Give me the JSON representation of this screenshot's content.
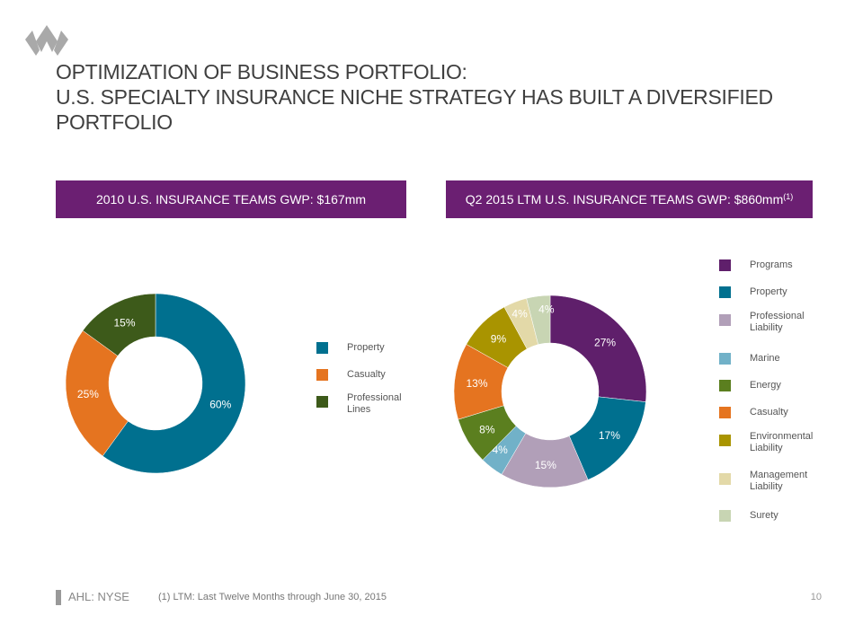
{
  "header": {
    "title_lines": [
      "OPTIMIZATION OF BUSINESS PORTFOLIO:",
      "U.S. SPECIALTY INSURANCE NICHE STRATEGY HAS BUILT A DIVERSIFIED",
      "PORTFOLIO"
    ]
  },
  "left_panel": {
    "title": "2010 U.S. INSURANCE TEAMS GWP:  $167mm"
  },
  "right_panel": {
    "title": "Q2 2015 LTM U.S. INSURANCE TEAMS GWP:  $860mm",
    "title_sup": "(1)"
  },
  "chart_data": [
    {
      "type": "pie",
      "donut": true,
      "title": "2010 U.S. INSURANCE TEAMS GWP:  $167mm",
      "categories": [
        "Property",
        "Casualty",
        "Professional Lines"
      ],
      "values": [
        60,
        25,
        15
      ],
      "labels": [
        "60%",
        "25%",
        "15%"
      ],
      "colors": [
        "#00708f",
        "#e57420",
        "#3d5a1a"
      ],
      "legend_labels": [
        [
          "Property"
        ],
        [
          "Casualty"
        ],
        [
          "Professional",
          "Lines"
        ]
      ],
      "legend_position": "right"
    },
    {
      "type": "pie",
      "donut": true,
      "title": "Q2 2015 LTM U.S. INSURANCE TEAMS GWP:  $860mm",
      "categories": [
        "Programs",
        "Property",
        "Professional Liability",
        "Marine",
        "Energy",
        "Casualty",
        "Environmental Liability",
        "Management Liability",
        "Surety"
      ],
      "values": [
        27,
        17,
        15,
        4,
        8,
        13,
        9,
        4,
        4
      ],
      "labels": [
        "27%",
        "17%",
        "15%",
        "4%",
        "8%",
        "13%",
        "9%",
        "4%",
        "4%"
      ],
      "colors": [
        "#5f1f6b",
        "#00708f",
        "#b19fb8",
        "#71b1c8",
        "#5b7f1f",
        "#e57420",
        "#a99400",
        "#e3d9a8",
        "#c8d5b3"
      ],
      "legend_labels": [
        [
          "Programs"
        ],
        [
          "Property"
        ],
        [
          "Professional",
          "Liability"
        ],
        [
          "Marine"
        ],
        [
          "Energy"
        ],
        [
          "Casualty"
        ],
        [
          "Environmental",
          "Liability"
        ],
        [
          "Management",
          "Liability"
        ],
        [
          "Surety"
        ]
      ],
      "legend_position": "right"
    }
  ],
  "footer": {
    "ticker": "AHL: NYSE",
    "footnote": "(1)    LTM: Last Twelve Months through June 30, 2015",
    "page_number": "10"
  }
}
